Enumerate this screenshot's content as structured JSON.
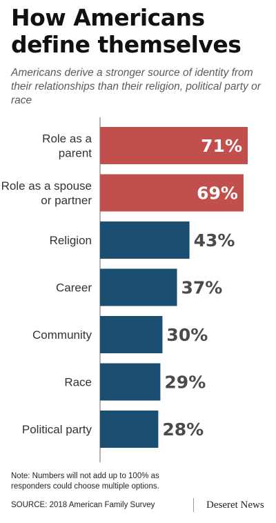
{
  "title": "How Americans\ndefine themselves",
  "subtitle": "Americans derive a stronger source of identity from their relationships than their religion, political party or race",
  "colors": {
    "highlight": "#c1504d",
    "primary": "#1b4f72",
    "value_text_dark": "#4a4a4a",
    "value_text_light": "#ffffff"
  },
  "chart_data": {
    "type": "bar",
    "orientation": "horizontal",
    "categories": [
      [
        "Role as a",
        "parent"
      ],
      [
        "Role as a spouse",
        "or partner"
      ],
      [
        "Religion"
      ],
      [
        "Career"
      ],
      [
        "Community"
      ],
      [
        "Race"
      ],
      [
        "Political party"
      ]
    ],
    "values": [
      71,
      69,
      43,
      37,
      30,
      29,
      28
    ],
    "value_labels": [
      "71%",
      "69%",
      "43%",
      "37%",
      "30%",
      "29%",
      "28%"
    ],
    "highlighted": [
      true,
      true,
      false,
      false,
      false,
      false,
      false
    ],
    "unit": "%",
    "xlim": [
      0,
      71
    ],
    "grid": false,
    "legend": "none"
  },
  "note": "Note: Numbers will not add up to 100% as\nresponders could choose multiple options.",
  "source": "SOURCE: 2018 American Family Survey",
  "brand": "Deseret News"
}
